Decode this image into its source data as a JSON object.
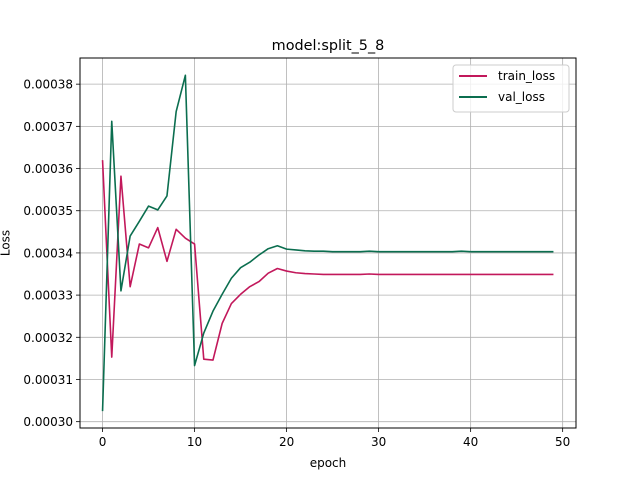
{
  "chart_data": {
    "type": "line",
    "title": "model:split_5_8",
    "xlabel": "epoch",
    "ylabel": "Loss",
    "xlim": [
      -2.45,
      51.45
    ],
    "ylim": [
      0.0002985,
      0.0003862
    ],
    "xticks": [
      0,
      10,
      20,
      30,
      40,
      50
    ],
    "xtick_labels": [
      "0",
      "10",
      "20",
      "30",
      "40",
      "50"
    ],
    "yticks": [
      0.0003,
      0.00031,
      0.00032,
      0.00033,
      0.00034,
      0.00035,
      0.00036,
      0.00037,
      0.00038
    ],
    "ytick_labels": [
      "0.00030",
      "0.00031",
      "0.00032",
      "0.00033",
      "0.00034",
      "0.00035",
      "0.00036",
      "0.00037",
      "0.00038"
    ],
    "grid": true,
    "legend_position": "top-right",
    "x": [
      0,
      1,
      2,
      3,
      4,
      5,
      6,
      7,
      8,
      9,
      10,
      11,
      12,
      13,
      14,
      15,
      16,
      17,
      18,
      19,
      20,
      21,
      22,
      23,
      24,
      25,
      26,
      27,
      28,
      29,
      30,
      31,
      32,
      33,
      34,
      35,
      36,
      37,
      38,
      39,
      40,
      41,
      42,
      43,
      44,
      45,
      46,
      47,
      48,
      49
    ],
    "series": [
      {
        "name": "train_loss",
        "color": "#c2185b",
        "values": [
          0.000362,
          0.0003153,
          0.0003582,
          0.000332,
          0.0003421,
          0.0003412,
          0.000346,
          0.000338,
          0.0003456,
          0.0003435,
          0.0003421,
          0.0003148,
          0.0003146,
          0.0003233,
          0.000328,
          0.0003302,
          0.000332,
          0.0003332,
          0.0003352,
          0.0003363,
          0.0003357,
          0.0003353,
          0.0003351,
          0.000335,
          0.0003349,
          0.0003349,
          0.0003349,
          0.0003349,
          0.0003349,
          0.000335,
          0.0003349,
          0.0003349,
          0.0003349,
          0.0003349,
          0.0003349,
          0.0003349,
          0.0003349,
          0.0003349,
          0.0003349,
          0.0003349,
          0.0003349,
          0.0003349,
          0.0003349,
          0.0003349,
          0.0003349,
          0.0003349,
          0.0003349,
          0.0003349,
          0.0003349,
          0.0003349
        ]
      },
      {
        "name": "val_loss",
        "color": "#0b6e4f",
        "values": [
          0.0003025,
          0.0003712,
          0.000331,
          0.000344,
          0.0003475,
          0.0003511,
          0.0003502,
          0.0003535,
          0.0003735,
          0.0003821,
          0.0003133,
          0.000321,
          0.0003262,
          0.0003302,
          0.000334,
          0.0003365,
          0.0003378,
          0.0003395,
          0.000341,
          0.0003417,
          0.0003409,
          0.0003407,
          0.0003405,
          0.0003404,
          0.0003404,
          0.0003403,
          0.0003403,
          0.0003403,
          0.0003403,
          0.0003404,
          0.0003403,
          0.0003403,
          0.0003403,
          0.0003403,
          0.0003403,
          0.0003403,
          0.0003403,
          0.0003403,
          0.0003403,
          0.0003404,
          0.0003403,
          0.0003403,
          0.0003403,
          0.0003403,
          0.0003403,
          0.0003403,
          0.0003403,
          0.0003403,
          0.0003403,
          0.0003403
        ]
      }
    ]
  }
}
